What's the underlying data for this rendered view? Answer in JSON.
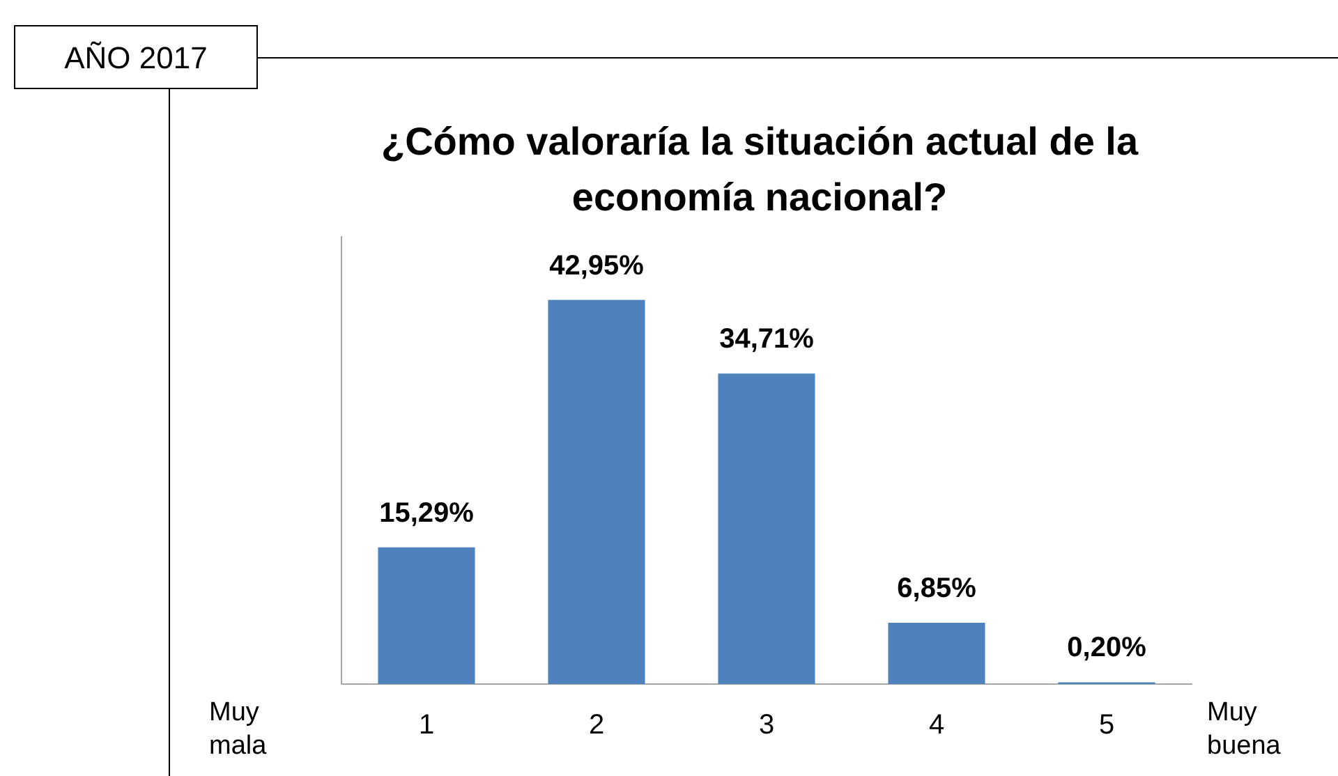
{
  "chart_data": {
    "type": "bar",
    "title": "¿Cómo valoraría la situación actual de la economía nacional?",
    "categories": [
      "1",
      "2",
      "3",
      "4",
      "5"
    ],
    "values": [
      15.29,
      42.95,
      34.71,
      6.85,
      0.2
    ],
    "value_labels": [
      "15,29%",
      "42,95%",
      "34,71%",
      "6,85%",
      "0,20%"
    ],
    "color": "#4f81bd",
    "grid": false,
    "legend": false,
    "annotations": [
      "AÑO 2017",
      "Muy mala",
      "Muy buena"
    ]
  }
}
